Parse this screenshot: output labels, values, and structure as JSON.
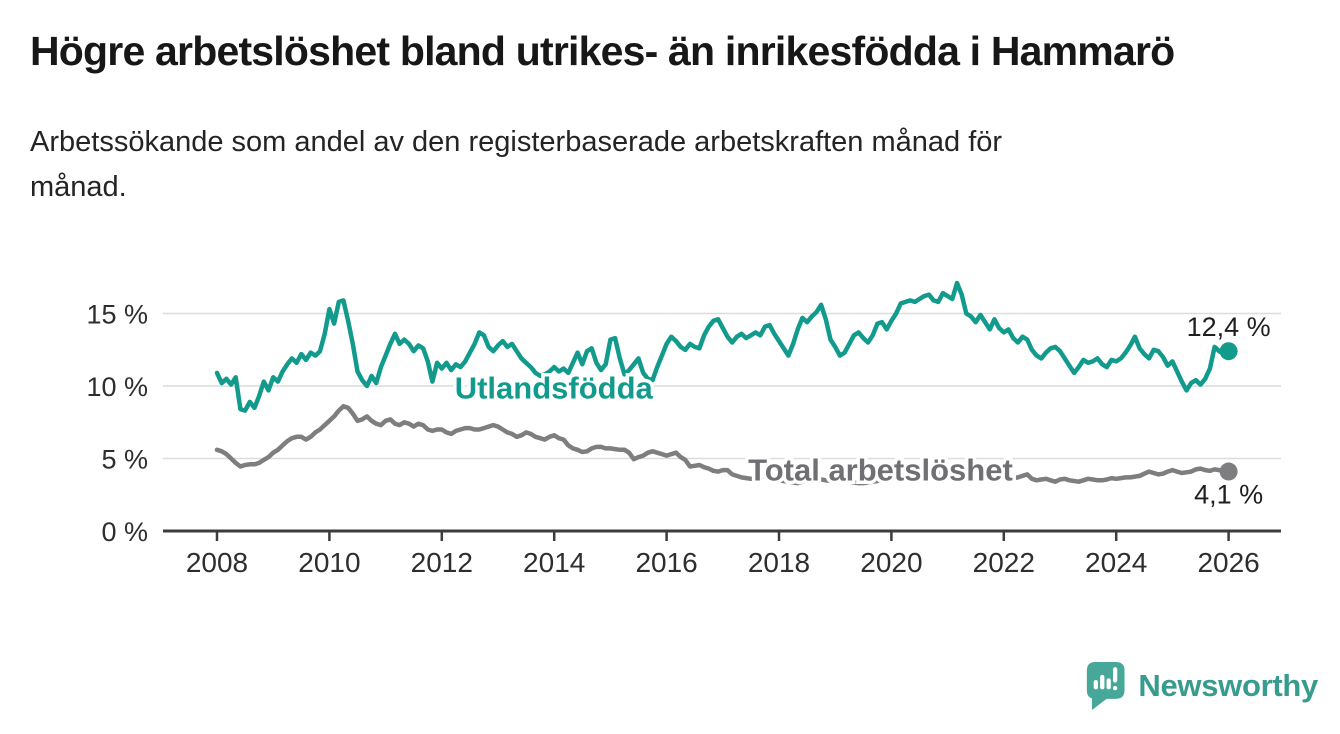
{
  "header": {
    "title": "Högre arbetslöshet bland utrikes- än inrikesfödda i Hammarö",
    "subtitle_lines": [
      "Arbetssökande som andel av den registerbaserade arbetskraften månad för",
      "månad."
    ]
  },
  "footer": {
    "brand": "Newsworthy",
    "logo_icon": "bar-chart-speech-bubble-icon",
    "brand_color": "#379c8e",
    "icon_color": "#47a89a"
  },
  "chart_data": {
    "type": "line",
    "title": "Högre arbetslöshet bland utrikes- än inrikesfödda i Hammarö",
    "subtitle": "Arbetssökande som andel av den registerbaserade arbetskraften månad för månad.",
    "unit": "%",
    "grid": "horizontal-only",
    "colors": {
      "grid": "#dcdcdc",
      "axis": "#3c3c3c",
      "tick_text": "#2e2e2e",
      "value_label": "#1f1f1f"
    },
    "x_axis": {
      "start": 2008,
      "end": 2026.9,
      "ticks": [
        2008,
        2010,
        2012,
        2014,
        2016,
        2018,
        2020,
        2022,
        2024,
        2026
      ]
    },
    "y_axis": {
      "range": [
        0,
        17.5
      ],
      "ticks": [
        {
          "value": 0,
          "label": "0 %"
        },
        {
          "value": 5,
          "label": "5 %"
        },
        {
          "value": 10,
          "label": "10 %"
        },
        {
          "value": 15,
          "label": "15 %"
        }
      ]
    },
    "points_per_year": 12,
    "series": [
      {
        "name": "Utlandsfödda",
        "color": "#129b8d",
        "label_color": "#129b8d",
        "label_anchor": {
          "year": 2012.23,
          "value": 9.15
        },
        "end_label": "12,4 %",
        "end_label_position": "above",
        "end_value": 12.4,
        "values": [
          10.9,
          10.2,
          10.5,
          10.1,
          10.6,
          8.4,
          8.3,
          8.9,
          8.5,
          9.3,
          10.3,
          9.7,
          10.6,
          10.3,
          11.0,
          11.5,
          11.9,
          11.6,
          12.2,
          11.8,
          12.3,
          12.1,
          12.4,
          13.6,
          15.3,
          14.3,
          15.8,
          15.9,
          14.5,
          12.9,
          11.0,
          10.4,
          10.0,
          10.7,
          10.2,
          11.3,
          12.1,
          12.9,
          13.6,
          12.9,
          13.2,
          12.9,
          12.4,
          12.8,
          12.6,
          11.7,
          10.3,
          11.6,
          11.2,
          11.6,
          11.1,
          11.5,
          11.3,
          11.7,
          12.3,
          12.9,
          13.7,
          13.5,
          12.7,
          12.4,
          12.8,
          13.1,
          12.7,
          12.9,
          12.4,
          11.9,
          11.6,
          11.3,
          10.9,
          10.7,
          10.8,
          11.0,
          11.3,
          11.0,
          11.2,
          10.9,
          11.6,
          12.3,
          11.5,
          12.4,
          12.6,
          11.6,
          11.1,
          11.5,
          13.2,
          13.3,
          11.9,
          10.8,
          11.1,
          11.5,
          11.9,
          10.9,
          10.5,
          10.4,
          11.3,
          12.1,
          12.9,
          13.4,
          13.1,
          12.7,
          12.5,
          12.9,
          12.7,
          12.6,
          13.5,
          14.1,
          14.5,
          14.6,
          14.0,
          13.4,
          13.0,
          13.4,
          13.6,
          13.3,
          13.5,
          13.7,
          13.5,
          14.1,
          14.2,
          13.6,
          13.1,
          12.6,
          12.1,
          12.9,
          13.9,
          14.7,
          14.4,
          14.8,
          15.1,
          15.6,
          14.6,
          13.2,
          12.7,
          12.1,
          12.3,
          12.9,
          13.5,
          13.7,
          13.3,
          13.0,
          13.5,
          14.3,
          14.4,
          13.9,
          14.5,
          15.0,
          15.7,
          15.8,
          15.9,
          15.8,
          16.0,
          16.2,
          16.3,
          15.9,
          15.8,
          16.4,
          16.2,
          16.0,
          17.1,
          16.3,
          15.0,
          14.8,
          14.4,
          14.9,
          14.4,
          13.9,
          14.6,
          14.0,
          13.7,
          13.9,
          13.3,
          13.0,
          13.4,
          13.2,
          12.5,
          12.1,
          11.9,
          12.3,
          12.6,
          12.7,
          12.4,
          11.9,
          11.4,
          10.9,
          11.3,
          11.8,
          11.6,
          11.7,
          11.9,
          11.5,
          11.3,
          11.8,
          11.7,
          11.9,
          12.3,
          12.8,
          13.4,
          12.6,
          12.2,
          11.9,
          12.5,
          12.4,
          12.0,
          11.4,
          11.7,
          11.0,
          10.3,
          9.7,
          10.2,
          10.4,
          10.1,
          10.5,
          11.2,
          12.7,
          12.4,
          12.2,
          12.4
        ]
      },
      {
        "name": "Total arbetslöshet",
        "color": "#7e7e80",
        "label_color": "#6f6f74",
        "label_anchor": {
          "year": 2017.45,
          "value": 3.5
        },
        "end_label": "4,1 %",
        "end_label_position": "below",
        "end_value": 4.1,
        "values": [
          5.6,
          5.5,
          5.3,
          5.0,
          4.7,
          4.45,
          4.55,
          4.6,
          4.6,
          4.7,
          4.9,
          5.1,
          5.4,
          5.6,
          5.9,
          6.2,
          6.4,
          6.5,
          6.5,
          6.3,
          6.5,
          6.8,
          7.0,
          7.3,
          7.6,
          7.9,
          8.3,
          8.6,
          8.5,
          8.1,
          7.6,
          7.7,
          7.9,
          7.6,
          7.4,
          7.3,
          7.6,
          7.7,
          7.4,
          7.3,
          7.5,
          7.4,
          7.2,
          7.4,
          7.3,
          7.0,
          6.9,
          7.0,
          7.0,
          6.8,
          6.7,
          6.9,
          7.0,
          7.1,
          7.1,
          7.0,
          7.0,
          7.1,
          7.2,
          7.3,
          7.2,
          7.0,
          6.8,
          6.7,
          6.5,
          6.6,
          6.8,
          6.7,
          6.5,
          6.4,
          6.3,
          6.5,
          6.6,
          6.4,
          6.3,
          5.9,
          5.7,
          5.6,
          5.45,
          5.5,
          5.7,
          5.8,
          5.8,
          5.7,
          5.7,
          5.65,
          5.6,
          5.6,
          5.4,
          4.95,
          5.1,
          5.2,
          5.4,
          5.5,
          5.4,
          5.3,
          5.2,
          5.3,
          5.4,
          5.1,
          4.9,
          4.45,
          4.5,
          4.55,
          4.4,
          4.3,
          4.15,
          4.1,
          4.2,
          4.2,
          3.9,
          3.8,
          3.7,
          3.65,
          3.6,
          3.65,
          3.7,
          3.8,
          3.9,
          3.7,
          3.5,
          3.45,
          3.4,
          3.35,
          3.3,
          3.4,
          3.5,
          3.55,
          3.6,
          3.55,
          3.5,
          3.45,
          3.5,
          3.45,
          3.4,
          3.4,
          3.35,
          3.3,
          3.3,
          3.35,
          3.4,
          3.45,
          3.5,
          3.55,
          3.6,
          3.7,
          3.9,
          4.1,
          4.2,
          4.25,
          4.2,
          4.15,
          4.1,
          4.1,
          4.05,
          4.0,
          4.0,
          3.95,
          3.9,
          3.9,
          3.85,
          3.8,
          3.8,
          3.75,
          3.7,
          3.7,
          3.65,
          3.6,
          3.6,
          3.6,
          3.65,
          3.7,
          3.8,
          3.9,
          3.6,
          3.5,
          3.55,
          3.6,
          3.5,
          3.4,
          3.55,
          3.6,
          3.5,
          3.45,
          3.4,
          3.5,
          3.6,
          3.55,
          3.5,
          3.5,
          3.55,
          3.65,
          3.6,
          3.65,
          3.7,
          3.7,
          3.75,
          3.8,
          3.95,
          4.1,
          4.0,
          3.9,
          3.95,
          4.1,
          4.2,
          4.1,
          4.0,
          4.05,
          4.1,
          4.25,
          4.3,
          4.2,
          4.15,
          4.25,
          4.2,
          4.15,
          4.1
        ]
      }
    ]
  }
}
